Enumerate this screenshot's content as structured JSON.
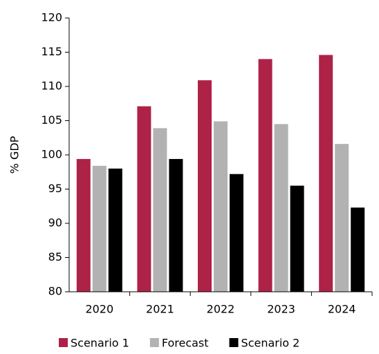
{
  "chart_data": {
    "type": "bar",
    "y_label": "% GDP",
    "categories": [
      "2020",
      "2021",
      "2022",
      "2023",
      "2024"
    ],
    "series": [
      {
        "name": "Scenario 1",
        "color": "#ae2248",
        "values": [
          99.4,
          107.1,
          110.9,
          114.0,
          114.6
        ]
      },
      {
        "name": "Forecast",
        "color": "#b2b2b2",
        "values": [
          98.4,
          103.9,
          104.9,
          104.5,
          101.6
        ]
      },
      {
        "name": "Scenario 2",
        "color": "#000000",
        "values": [
          98.0,
          99.4,
          97.2,
          95.5,
          92.3
        ]
      }
    ],
    "ylim": [
      80,
      120
    ],
    "yticks": [
      80,
      85,
      90,
      95,
      100,
      105,
      110,
      115,
      120
    ],
    "grid": false,
    "legend": "bottom"
  }
}
